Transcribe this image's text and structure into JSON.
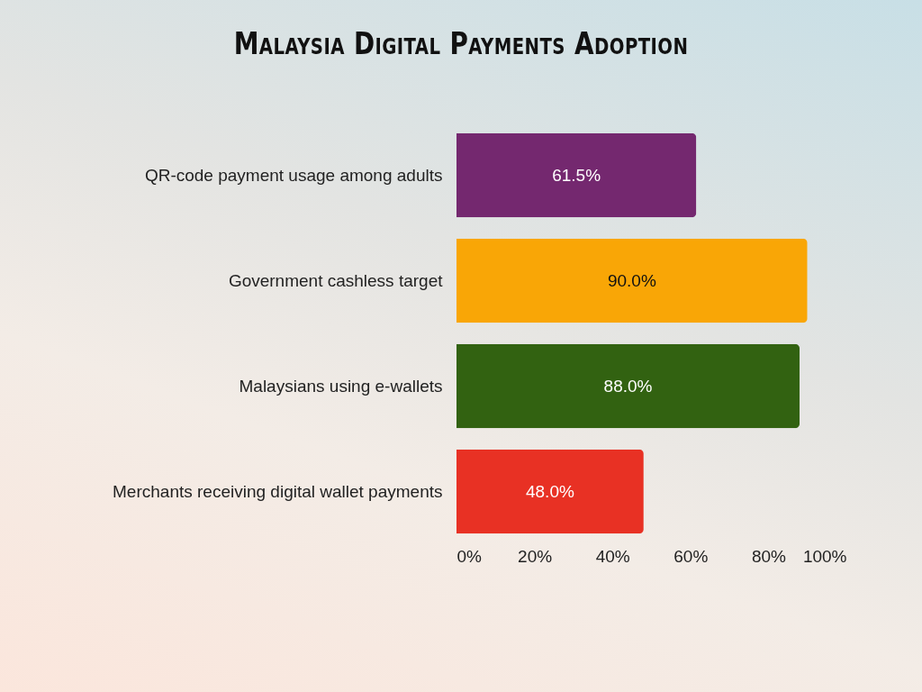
{
  "chart_data": {
    "type": "bar",
    "orientation": "horizontal",
    "title": "Malaysia Digital Payments Adoption",
    "categories": [
      "QR-code payment usage among adults",
      "Government cashless target",
      "Malaysians using e-wallets",
      "Merchants receiving digital wallet payments"
    ],
    "values": [
      61.5,
      90.0,
      88.0,
      48.0
    ],
    "colors": [
      "#74286f",
      "#f9a606",
      "#326211",
      "#e83124"
    ],
    "value_labels": [
      "61.5%",
      "90.0%",
      "88.0%",
      "48.0%"
    ],
    "xlim": [
      0,
      100
    ],
    "xticks": [
      {
        "value": 0,
        "label": "0%"
      },
      {
        "value": 20,
        "label": "20%"
      },
      {
        "value": 40,
        "label": "40%"
      },
      {
        "value": 60,
        "label": "60%"
      },
      {
        "value": 80,
        "label": "80%"
      },
      {
        "value": 100,
        "label": "100%"
      }
    ]
  }
}
